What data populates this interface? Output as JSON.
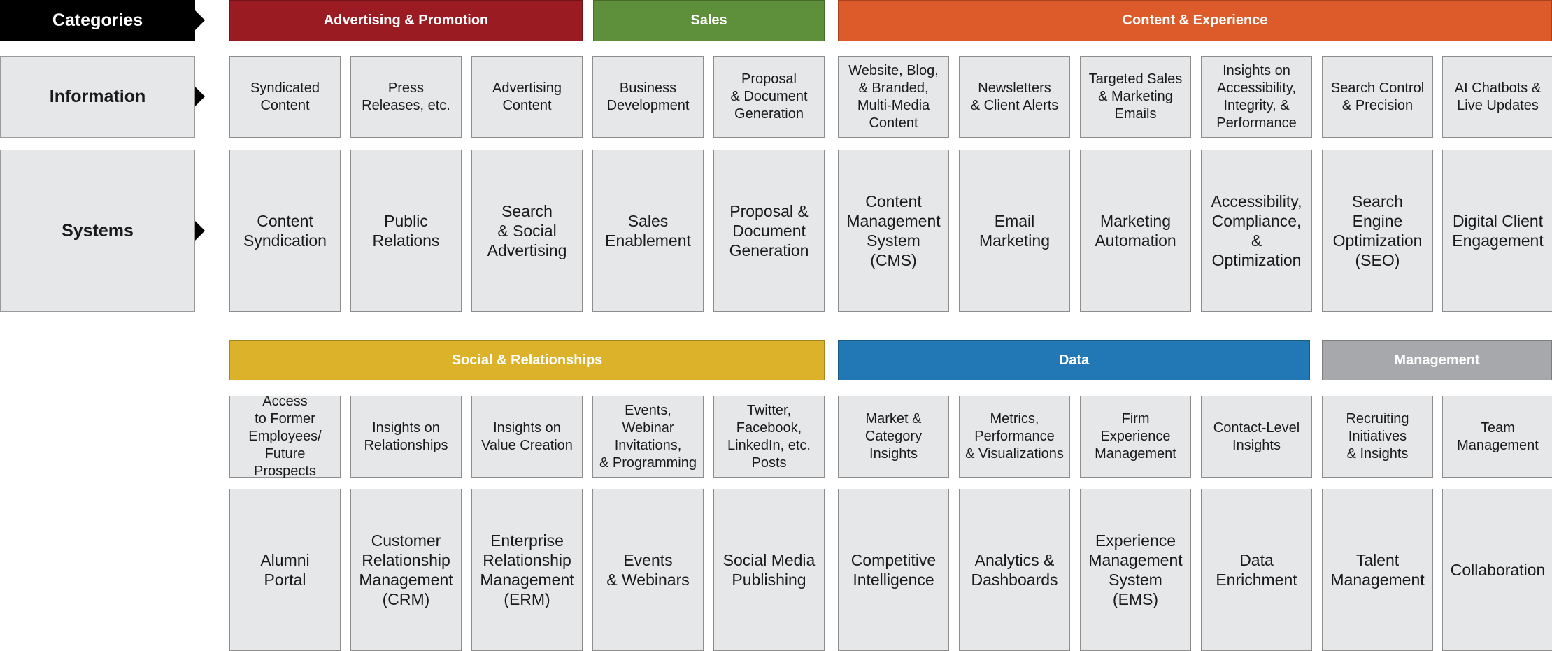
{
  "row_labels": {
    "categories": "Categories",
    "information": "Information",
    "systems": "Systems"
  },
  "colors": {
    "advertising": "#9b1b23",
    "sales": "#5e8f3a",
    "content": "#dd5a2a",
    "social": "#dcb22a",
    "data": "#2278b5",
    "management": "#a7a8ab"
  },
  "top_banners": [
    {
      "label": "Advertising & Promotion",
      "color": "#9b1b23"
    },
    {
      "label": "Sales",
      "color": "#5e8f3a"
    },
    {
      "label": "Content & Experience",
      "color": "#dd5a2a"
    }
  ],
  "bottom_banners": [
    {
      "label": "Social & Relationships",
      "color": "#dcb22a"
    },
    {
      "label": "Data",
      "color": "#2278b5"
    },
    {
      "label": "Management",
      "color": "#a7a8ab"
    }
  ],
  "top_info": [
    "Syndicated\nContent",
    "Press\nReleases, etc.",
    "Advertising\nContent",
    "Business\nDevelopment",
    "Proposal\n& Document\nGeneration",
    "Website, Blog,\n& Branded,\nMulti-Media\nContent",
    "Newsletters\n& Client Alerts",
    "Targeted Sales\n& Marketing\nEmails",
    "Insights on\nAccessibility,\nIntegrity, &\nPerformance",
    "Search Control\n& Precision",
    "AI Chatbots &\nLive Updates"
  ],
  "top_systems": [
    "Content\nSyndication",
    "Public\nRelations",
    "Search\n& Social\nAdvertising",
    "Sales\nEnablement",
    "Proposal &\nDocument\nGeneration",
    "Content\nManagement\nSystem\n(CMS)",
    "Email\nMarketing",
    "Marketing\nAutomation",
    "Accessibility,\nCompliance,\n& Optimization",
    "Search\nEngine\nOptimization\n(SEO)",
    "Digital Client\nEngagement"
  ],
  "bottom_info": [
    "Access\nto Former\nEmployees/\nFuture Prospects",
    "Insights on\nRelationships",
    "Insights on\nValue Creation",
    "Events,\nWebinar\nInvitations,\n& Programming",
    "Twitter,\nFacebook,\nLinkedIn, etc.\nPosts",
    "Market &\nCategory\nInsights",
    "Metrics,\nPerformance\n& Visualizations",
    "Firm\nExperience\nManagement",
    "Contact-Level\nInsights",
    "Recruiting\nInitiatives\n& Insights",
    "Team\nManagement"
  ],
  "bottom_systems": [
    "Alumni\nPortal",
    "Customer\nRelationship\nManagement\n(CRM)",
    "Enterprise\nRelationship\nManagement\n(ERM)",
    "Events\n& Webinars",
    "Social Media\nPublishing",
    "Competitive\nIntelligence",
    "Analytics &\nDashboards",
    "Experience\nManagement\nSystem\n(EMS)",
    "Data\nEnrichment",
    "Talent\nManagement",
    "Collaboration"
  ]
}
